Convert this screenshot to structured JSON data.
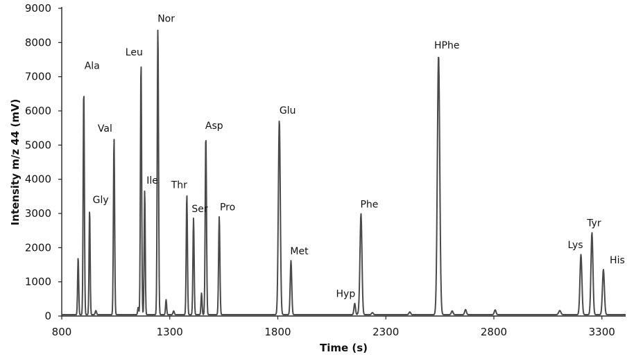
{
  "chart_data": {
    "type": "line",
    "title": "",
    "xlabel": "Time (s)",
    "ylabel": "Intensity m/z 44 (mV)",
    "xlim": [
      800,
      3410
    ],
    "ylim": [
      0,
      9000
    ],
    "x_ticks": [
      800,
      1300,
      1800,
      2300,
      2800,
      3300
    ],
    "y_ticks": [
      0,
      1000,
      2000,
      3000,
      4000,
      5000,
      6000,
      7000,
      8000,
      9000
    ],
    "grid": false,
    "legend": "none",
    "baseline": 40,
    "series_color": "#4a4a4a",
    "peaks": [
      {
        "label": "",
        "x": 876,
        "y": 1680,
        "w": 2.5
      },
      {
        "label": "Ala",
        "x": 902,
        "y": 6600,
        "w": 2.8
      },
      {
        "label": "Gly",
        "x": 929,
        "y": 3080,
        "w": 2.5
      },
      {
        "label": "",
        "x": 958,
        "y": 120,
        "w": 3
      },
      {
        "label": "Val",
        "x": 1042,
        "y": 5170,
        "w": 2.8
      },
      {
        "label": "",
        "x": 1154,
        "y": 220,
        "w": 2.5
      },
      {
        "label": "Leu",
        "x": 1167,
        "y": 7400,
        "w": 2.8
      },
      {
        "label": "Ile",
        "x": 1184,
        "y": 3650,
        "w": 2.5
      },
      {
        "label": "Nor",
        "x": 1245,
        "y": 8380,
        "w": 3
      },
      {
        "label": "",
        "x": 1283,
        "y": 440,
        "w": 2.5
      },
      {
        "label": "",
        "x": 1318,
        "y": 110,
        "w": 3
      },
      {
        "label": "Thr",
        "x": 1379,
        "y": 3520,
        "w": 2.8
      },
      {
        "label": "Ser",
        "x": 1410,
        "y": 2820,
        "w": 2.8
      },
      {
        "label": "",
        "x": 1447,
        "y": 630,
        "w": 2.5
      },
      {
        "label": "Asp",
        "x": 1467,
        "y": 5250,
        "w": 3
      },
      {
        "label": "Pro",
        "x": 1529,
        "y": 2870,
        "w": 3
      },
      {
        "label": "Glu",
        "x": 1807,
        "y": 5700,
        "w": 4.5
      },
      {
        "label": "Met",
        "x": 1861,
        "y": 1580,
        "w": 3.5
      },
      {
        "label": "Hyp",
        "x": 2156,
        "y": 330,
        "w": 3.5
      },
      {
        "label": "",
        "x": 2176,
        "y": 80,
        "w": 4
      },
      {
        "label": "Phe",
        "x": 2185,
        "y": 2950,
        "w": 4.5
      },
      {
        "label": "",
        "x": 2238,
        "y": 60,
        "w": 4
      },
      {
        "label": "",
        "x": 2411,
        "y": 80,
        "w": 4
      },
      {
        "label": "HPhe",
        "x": 2544,
        "y": 7600,
        "w": 5.5
      },
      {
        "label": "",
        "x": 2607,
        "y": 110,
        "w": 4
      },
      {
        "label": "",
        "x": 2669,
        "y": 150,
        "w": 4
      },
      {
        "label": "",
        "x": 2806,
        "y": 140,
        "w": 4
      },
      {
        "label": "",
        "x": 3105,
        "y": 120,
        "w": 5
      },
      {
        "label": "Lys",
        "x": 3203,
        "y": 1760,
        "w": 4.5
      },
      {
        "label": "Tyr",
        "x": 3254,
        "y": 2400,
        "w": 4.5
      },
      {
        "label": "His",
        "x": 3307,
        "y": 1320,
        "w": 4.5
      }
    ]
  }
}
